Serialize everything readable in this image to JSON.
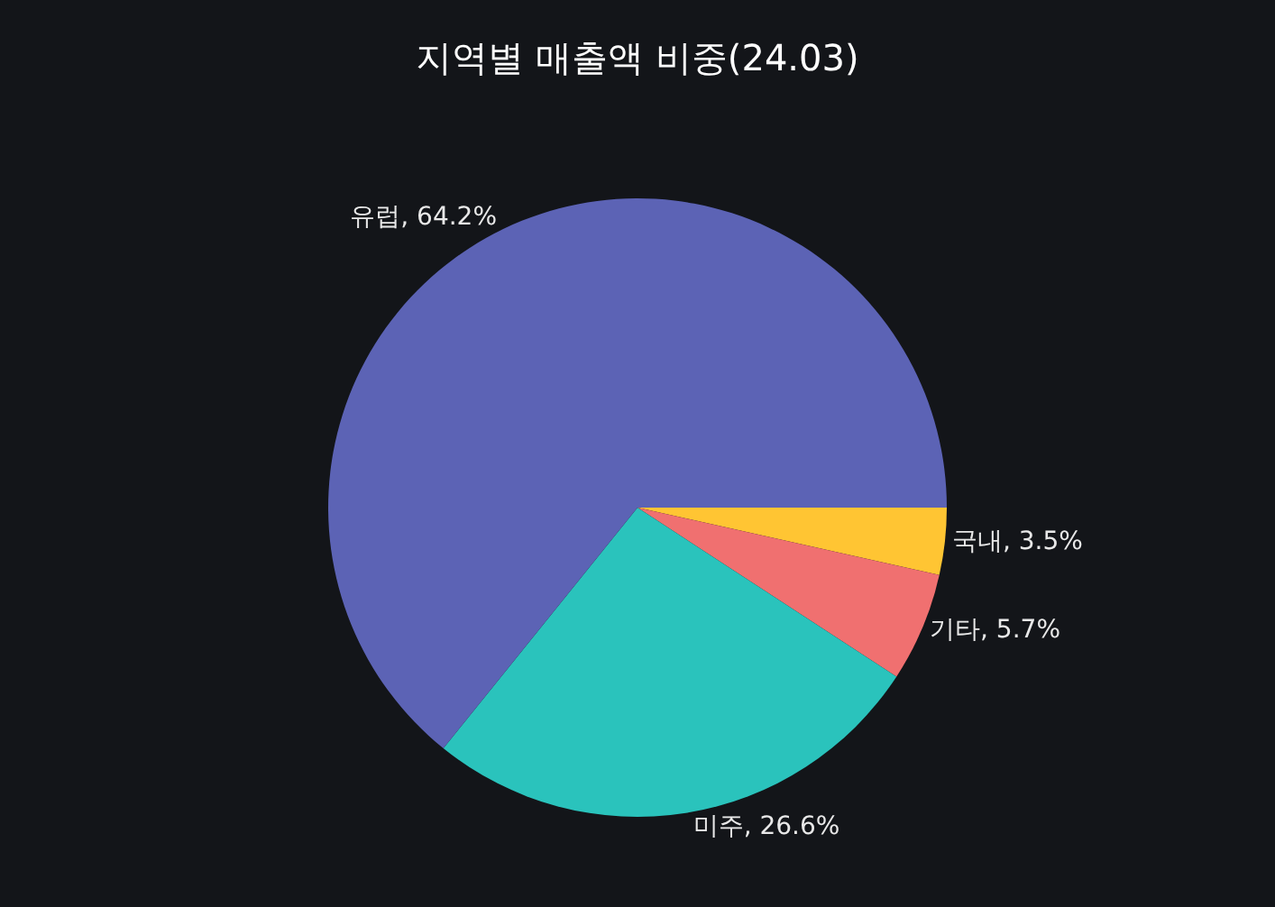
{
  "chart_data": {
    "type": "pie",
    "title": "지역별 매출액 비중(24.03)",
    "categories": [
      "국내",
      "기타",
      "미주",
      "유럽"
    ],
    "values": [
      3.5,
      5.7,
      26.6,
      64.2
    ],
    "colors": [
      "#ffc533",
      "#f07070",
      "#2ac3bc",
      "#5c63b5"
    ],
    "value_labels": [
      "3.5%",
      "5.7%",
      "26.6%",
      "64.2%"
    ],
    "legend": false
  }
}
